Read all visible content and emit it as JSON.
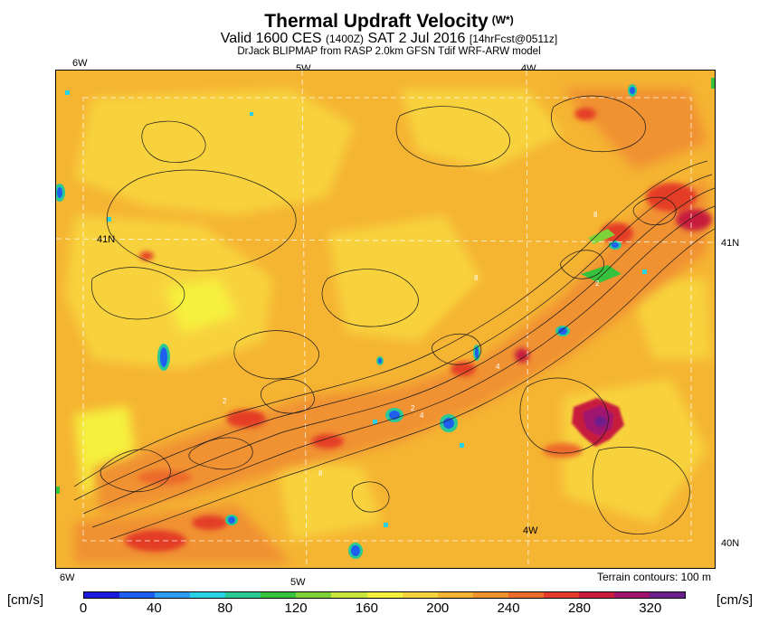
{
  "title": "Thermal Updraft Velocity",
  "title_symbol": "(W*)",
  "subtitle_main": "Valid 1600 CES",
  "subtitle_utc": "(1400Z)",
  "subtitle_date": "SAT 2 Jul 2016",
  "subtitle_fcst": "[14hrFcst@0511z]",
  "model_line": "DrJack BLIPMAP from RASP 2.0km GFSN Tdif WRF-ARW model",
  "axis": {
    "top_6w": "6W",
    "top_5w": "5W",
    "top_4w": "4W",
    "bottom_6w": "6W",
    "bottom_5w": "5W",
    "inner_4w": "4W",
    "left_41n": "41N",
    "right_41n": "41N",
    "right_40n": "40N"
  },
  "terrain_note": "Terrain contours: 100 m",
  "unit_left": "[cm/s]",
  "unit_right": "[cm/s]",
  "colorbar": {
    "colors": [
      "#1a1ae0",
      "#1e5ff0",
      "#2c9cf5",
      "#28d2e6",
      "#2ac894",
      "#36c23c",
      "#7cd236",
      "#c8e63c",
      "#f5f03c",
      "#f8d23c",
      "#f5b432",
      "#f09130",
      "#ec6a2c",
      "#e43c28",
      "#c81e3c",
      "#a0146e",
      "#6e1e8c"
    ],
    "labels": [
      "0",
      "40",
      "80",
      "120",
      "160",
      "200",
      "240",
      "280",
      "320"
    ]
  }
}
